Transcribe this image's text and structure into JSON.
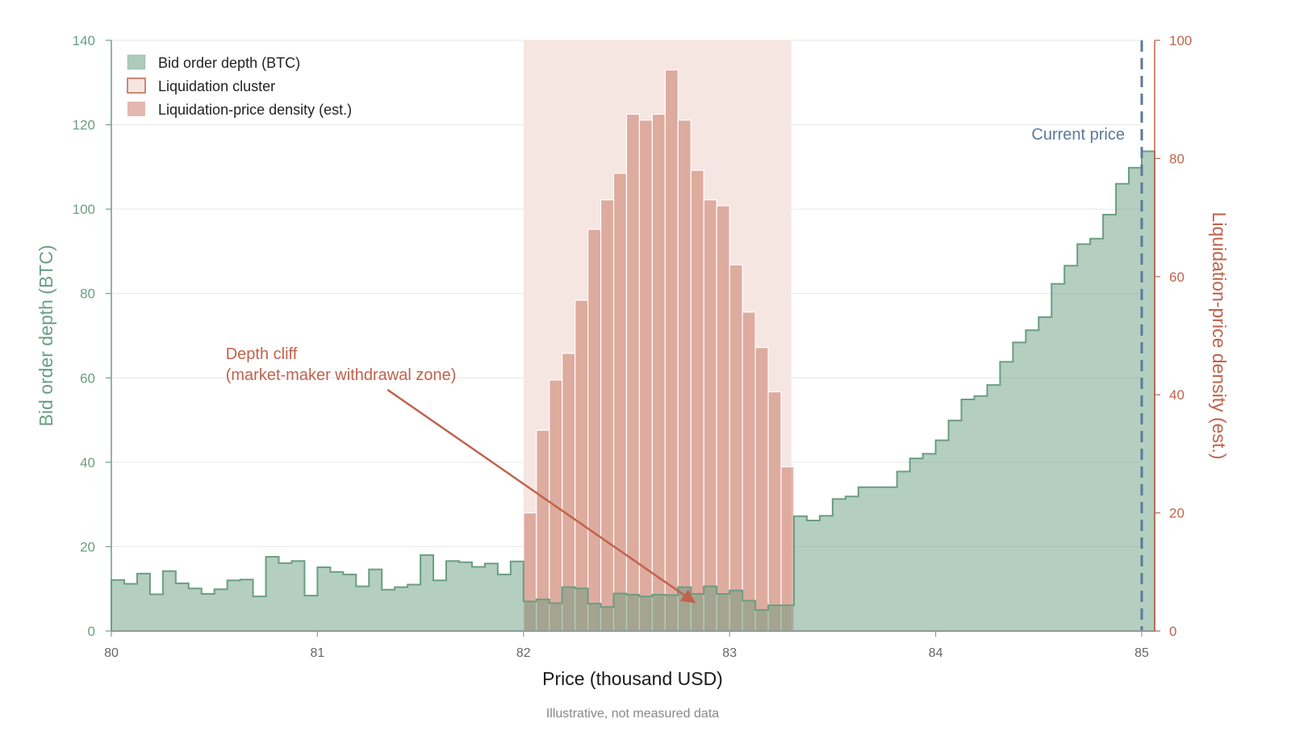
{
  "chart_data": {
    "type": "bar",
    "title": "",
    "xlabel": "Price (thousand USD)",
    "ylabel": "Bid order depth (BTC)",
    "y2label": "Liquidation-price density (est.)",
    "xlim": [
      80,
      85
    ],
    "ylim": [
      0,
      140
    ],
    "y2lim": [
      0,
      100
    ],
    "x_ticks": [
      80,
      81,
      82,
      83,
      84,
      85
    ],
    "y_ticks": [
      0,
      20,
      40,
      60,
      80,
      100,
      120,
      140
    ],
    "y2_ticks": [
      0,
      20,
      40,
      60,
      80,
      100
    ],
    "grid": "horizontal",
    "legend_position": "top-left",
    "legend": [
      "Bid order depth (BTC)",
      "Liquidation cluster",
      "Liquidation-price density (est.)"
    ],
    "series": [
      {
        "name": "Bid order depth (BTC)",
        "type": "step-area",
        "axis": "left",
        "color": "#6a9e82",
        "x_start": 80,
        "bin_width": 0.0625,
        "values": [
          12.1,
          11.2,
          13.6,
          8.7,
          14.2,
          11.3,
          10.1,
          8.8,
          9.9,
          12.0,
          12.2,
          8.2,
          17.6,
          16.1,
          16.6,
          8.4,
          15.1,
          14.0,
          13.4,
          10.6,
          14.6,
          9.8,
          10.4,
          11.0,
          18.0,
          12.0,
          16.6,
          16.3,
          15.2,
          16.0,
          13.4,
          16.5,
          7.0,
          7.5,
          6.6,
          10.4,
          10.1,
          6.5,
          5.7,
          8.9,
          8.6,
          8.2,
          8.6,
          8.5,
          10.4,
          8.8,
          10.6,
          8.8,
          9.6,
          7.2,
          5.0,
          6.1,
          6.1,
          27.2,
          26.2,
          27.3,
          31.3,
          31.9,
          34.1,
          34.1,
          34.1,
          37.8,
          40.9,
          42.0,
          45.2,
          49.9,
          54.9,
          55.7,
          58.3,
          63.8,
          68.4,
          71.3,
          74.4,
          82.3,
          86.6,
          91.7,
          93.0,
          98.7,
          106.0,
          109.8,
          113.7
        ]
      },
      {
        "name": "Liquidation-price density (est.)",
        "type": "bar",
        "axis": "right",
        "color": "#c0634d",
        "x_start": 82.0,
        "bin_width": 0.0625,
        "values": [
          20.0,
          34.0,
          42.5,
          47.0,
          56.0,
          68.0,
          73.0,
          77.5,
          87.5,
          86.5,
          87.5,
          95.0,
          86.5,
          78.0,
          73.0,
          72.0,
          62.0,
          54.0,
          48.0,
          40.5,
          27.8
        ]
      }
    ],
    "highlight_band": {
      "label": "Liquidation cluster",
      "x_range": [
        82.0,
        83.3
      ],
      "color": "#f6e6e2"
    },
    "current_price": {
      "label": "Current price",
      "x": 85,
      "color": "#5b7a9a"
    },
    "annotation": {
      "lines": [
        "Depth cliff",
        "(market-maker withdrawal zone)"
      ],
      "arrow_target": {
        "x": 82.83,
        "y": 6.8
      }
    },
    "caption": "Illustrative, not measured data"
  }
}
